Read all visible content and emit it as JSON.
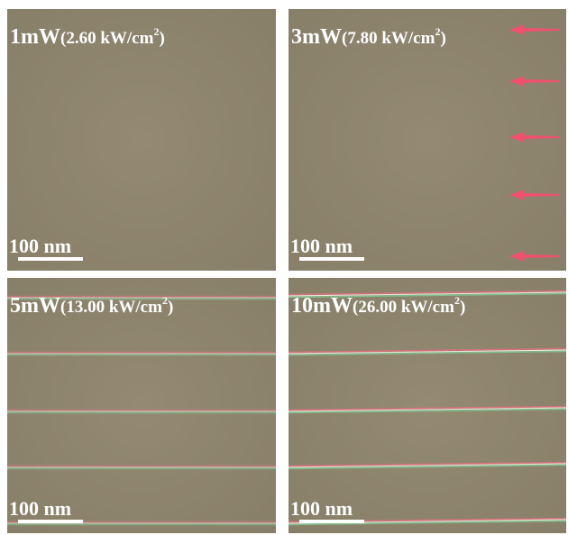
{
  "panels": [
    {
      "power": "1mW",
      "intensity": "(2.60 kW/cm",
      "superscript": "2",
      "close": ")",
      "scale_bar": "100 nm"
    },
    {
      "power": "3mW",
      "intensity": "(7.80 kW/cm",
      "superscript": "2",
      "close": ")",
      "scale_bar": "100 nm"
    },
    {
      "power": "5mW",
      "intensity": "(13.00 kW/cm",
      "superscript": "2",
      "close": ")",
      "scale_bar": "100 nm"
    },
    {
      "power": "10mW",
      "intensity": "(26.00 kW/cm",
      "superscript": "2",
      "close": ")",
      "scale_bar": "100 nm"
    }
  ]
}
